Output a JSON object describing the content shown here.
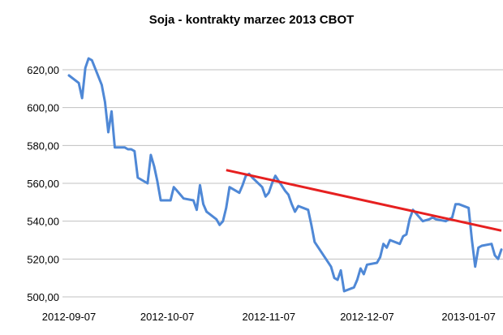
{
  "chart_data": {
    "type": "line",
    "title": "Soja - kontrakty marzec 2013 CBOT",
    "ylabel": "",
    "ylim": [
      500,
      630
    ],
    "yticks": [
      500,
      520,
      540,
      560,
      580,
      600,
      620
    ],
    "ytick_labels": [
      "500,00",
      "520,00",
      "540,00",
      "560,00",
      "580,00",
      "600,00",
      "620,00"
    ],
    "xlim": [
      "2012-09-07",
      "2013-01-17"
    ],
    "xticks": [
      "2012-09-07",
      "2012-10-07",
      "2012-11-07",
      "2012-12-07",
      "2013-01-07"
    ],
    "xtick_labels": [
      "2012-09-07",
      "2012-10-07",
      "2012-11-07",
      "2012-12-07",
      "2013-01-07"
    ],
    "grid": "horizontal",
    "colors": {
      "series": "#4f88d6",
      "trend": "#e62020",
      "grid": "#c0c0c0"
    },
    "series": [
      {
        "x": [
          "2012-09-07",
          "2012-09-10",
          "2012-09-11",
          "2012-09-12",
          "2012-09-13",
          "2012-09-14",
          "2012-09-17",
          "2012-09-18",
          "2012-09-19",
          "2012-09-20",
          "2012-09-21",
          "2012-09-24",
          "2012-09-25",
          "2012-09-26",
          "2012-09-27",
          "2012-09-28",
          "2012-10-01",
          "2012-10-02",
          "2012-10-03",
          "2012-10-04",
          "2012-10-05",
          "2012-10-08",
          "2012-10-09",
          "2012-10-10",
          "2012-10-11",
          "2012-10-12",
          "2012-10-15",
          "2012-10-16",
          "2012-10-17",
          "2012-10-18",
          "2012-10-19",
          "2012-10-22",
          "2012-10-23",
          "2012-10-24",
          "2012-10-25",
          "2012-10-26",
          "2012-10-29",
          "2012-10-30",
          "2012-10-31",
          "2012-11-01",
          "2012-11-02",
          "2012-11-05",
          "2012-11-06",
          "2012-11-07",
          "2012-11-08",
          "2012-11-09",
          "2012-11-12",
          "2012-11-13",
          "2012-11-14",
          "2012-11-15",
          "2012-11-16",
          "2012-11-19",
          "2012-11-20",
          "2012-11-21",
          "2012-11-26",
          "2012-11-27",
          "2012-11-28",
          "2012-11-29",
          "2012-11-30",
          "2012-12-03",
          "2012-12-04",
          "2012-12-05",
          "2012-12-06",
          "2012-12-07",
          "2012-12-10",
          "2012-12-11",
          "2012-12-12",
          "2012-12-13",
          "2012-12-14",
          "2012-12-17",
          "2012-12-18",
          "2012-12-19",
          "2012-12-20",
          "2012-12-21",
          "2012-12-24",
          "2012-12-26",
          "2012-12-27",
          "2012-12-28",
          "2012-12-31",
          "2013-01-02",
          "2013-01-03",
          "2013-01-04",
          "2013-01-07",
          "2013-01-08",
          "2013-01-09",
          "2013-01-10",
          "2013-01-11",
          "2013-01-14",
          "2013-01-15",
          "2013-01-16",
          "2013-01-17"
        ],
        "y": [
          617,
          613,
          605,
          621,
          626,
          625,
          612,
          603,
          587,
          598,
          579,
          579,
          578,
          578,
          577,
          563,
          560,
          575,
          569,
          561,
          551,
          551,
          558,
          556,
          554,
          552,
          551,
          546,
          559,
          549,
          545,
          541,
          538,
          540,
          547,
          558,
          555,
          559,
          564,
          565,
          563,
          558,
          553,
          555,
          560,
          564,
          556,
          554,
          549,
          545,
          548,
          546,
          538,
          529,
          516,
          510,
          509,
          514,
          503,
          505,
          509,
          515,
          512,
          517,
          518,
          521,
          528,
          526,
          530,
          528,
          532,
          533,
          541,
          546,
          540,
          541,
          542,
          541,
          540,
          542,
          549,
          549,
          547,
          530,
          516,
          526,
          527,
          528,
          522,
          520,
          525
        ]
      }
    ],
    "trendline": {
      "x": [
        "2012-10-25",
        "2013-01-17"
      ],
      "y": [
        567,
        535
      ]
    }
  }
}
